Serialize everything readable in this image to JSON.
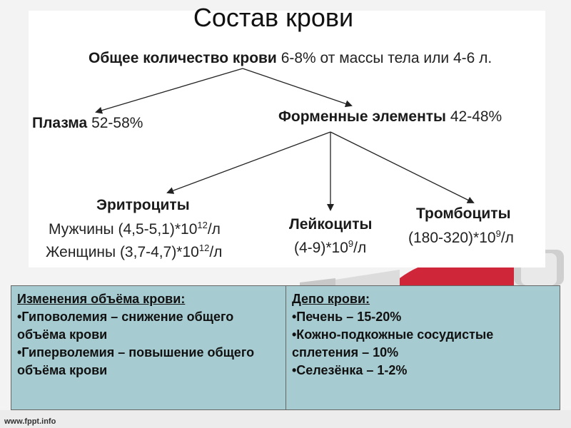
{
  "title": "Состав крови",
  "total": {
    "bold": "Общее количество крови",
    "rest": "6-8% от массы тела или 4-6 л."
  },
  "plasma": {
    "bold": "Плазма",
    "rest": "52-58%"
  },
  "formed": {
    "bold": "Форменные элементы",
    "rest": "42-48%"
  },
  "erythrocytes": {
    "name": "Эритроциты",
    "men_pre": "Мужчины (4,5-5,1)*10",
    "men_exp": "12",
    "men_post": "/л",
    "women_pre": "Женщины (3,7-4,7)*10",
    "women_exp": "12",
    "women_post": "/л"
  },
  "leukocytes": {
    "name": "Лейкоциты",
    "pre": "(4-9)*10",
    "exp": "9",
    "post": "/л"
  },
  "thrombocytes": {
    "name": "Тромбоциты",
    "pre": "(180-320)*10",
    "exp": "9",
    "post": "/л"
  },
  "table": {
    "left": {
      "heading": "Изменения объёма крови:",
      "items": [
        "•Гиповолемия – снижение общего объёма крови",
        "•Гиперволемия – повышение общего объёма крови"
      ]
    },
    "right": {
      "heading": "Депо крови:",
      "items": [
        "•Печень – 15-20%",
        "•Кожно-подкожные сосудистые сплетения – 10%",
        "•Селезёнка – 1-2%"
      ]
    }
  },
  "footer": "www.fppt.info",
  "colors": {
    "table_bg": "#a6cbd0",
    "deco_red": "#d0263a"
  }
}
